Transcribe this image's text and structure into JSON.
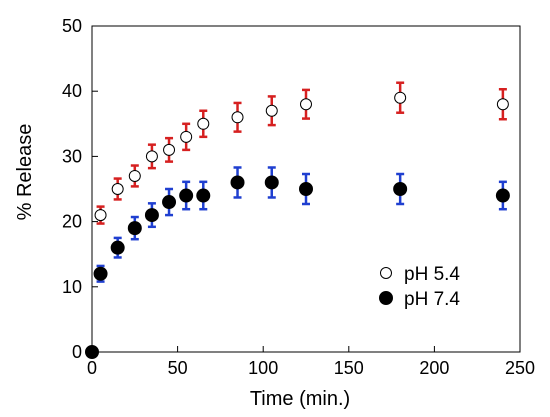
{
  "chart_data": {
    "type": "scatter",
    "title": "",
    "xlabel": "Time (min.)",
    "ylabel": "% Release",
    "xlim": [
      0,
      250
    ],
    "ylim": [
      0,
      50
    ],
    "xticks": [
      0,
      50,
      100,
      150,
      200,
      250
    ],
    "yticks": [
      0,
      10,
      20,
      30,
      40,
      50
    ],
    "xtick_labels": [
      "0",
      "50",
      "100",
      "150",
      "200",
      "250"
    ],
    "ytick_labels": [
      "0",
      "10",
      "20",
      "30",
      "40",
      "50"
    ],
    "grid": false,
    "legend_position": "lower-right",
    "series": [
      {
        "name": "pH 5.4",
        "marker": "open-circle",
        "marker_color": "#000000",
        "errorbar_color": "#d62020",
        "x": [
          5,
          15,
          25,
          35,
          45,
          55,
          65,
          85,
          105,
          125,
          180,
          240
        ],
        "y": [
          21,
          25,
          27,
          30,
          31,
          33,
          35,
          36,
          37,
          38,
          39,
          38
        ],
        "err": [
          1.3,
          1.6,
          1.6,
          1.8,
          1.8,
          2.0,
          2.0,
          2.2,
          2.2,
          2.2,
          2.3,
          2.3
        ]
      },
      {
        "name": "pH 7.4",
        "marker": "filled-circle",
        "marker_color": "#000000",
        "errorbar_color": "#1f3fd0",
        "x": [
          0,
          5,
          15,
          25,
          35,
          45,
          55,
          65,
          85,
          105,
          125,
          180,
          240
        ],
        "y": [
          0,
          12,
          16,
          19,
          21,
          23,
          24,
          24,
          26,
          26,
          25,
          25,
          24
        ],
        "err": [
          0,
          1.2,
          1.5,
          1.7,
          1.8,
          2.0,
          2.1,
          2.1,
          2.3,
          2.3,
          2.3,
          2.3,
          2.1
        ]
      }
    ]
  }
}
